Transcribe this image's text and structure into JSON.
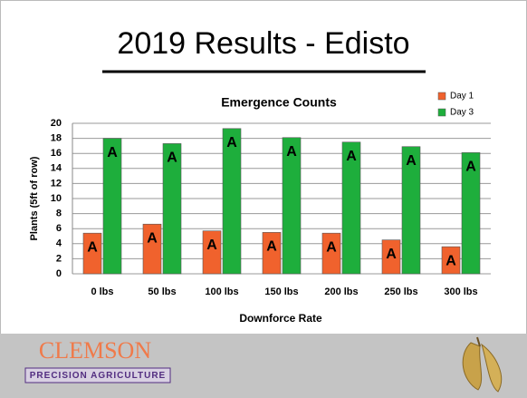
{
  "slide": {
    "title": "2019 Results - Edisto"
  },
  "chart_data": {
    "type": "bar",
    "title": "Emergence Counts",
    "x_label": "Downforce Rate",
    "y_label": "Plants (5ft of row)",
    "categories": [
      "0 lbs",
      "50 lbs",
      "100 lbs",
      "150 lbs",
      "200 lbs",
      "250 lbs",
      "300 lbs"
    ],
    "series": [
      {
        "name": "Day 1",
        "color": "#f0622d",
        "values": [
          5.4,
          6.6,
          5.7,
          5.5,
          5.4,
          4.5,
          3.6
        ],
        "letters": [
          "A",
          "A",
          "A",
          "A",
          "A",
          "A",
          "A"
        ]
      },
      {
        "name": "Day 3",
        "color": "#1eae3c",
        "values": [
          18.0,
          17.3,
          19.3,
          18.1,
          17.5,
          16.9,
          16.1
        ],
        "letters": [
          "A",
          "A",
          "A",
          "A",
          "A",
          "A",
          "A"
        ]
      }
    ],
    "ylim": [
      0,
      20
    ],
    "yticks": [
      0,
      2,
      4,
      6,
      8,
      10,
      12,
      14,
      16,
      18,
      20
    ],
    "grid": true,
    "legend": "top-right"
  },
  "footer": {
    "logo_text": "CLEMSON",
    "logo_subtext": "PRECISION AGRICULTURE"
  }
}
